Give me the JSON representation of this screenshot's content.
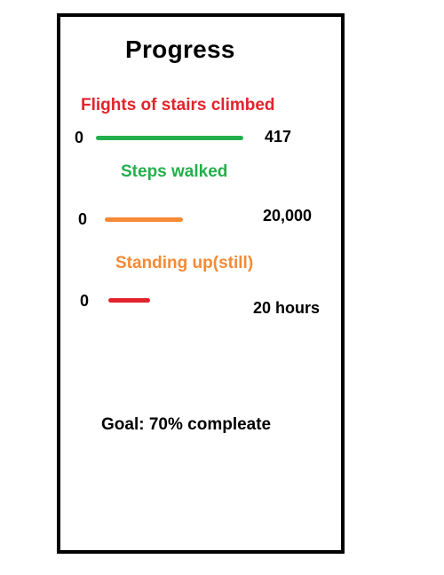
{
  "header": {
    "title": "Progress"
  },
  "metrics": [
    {
      "label": "Flights of stairs climbed",
      "start": "0",
      "target": "417",
      "color": "#e3232c",
      "bar_color": "#22b04c"
    },
    {
      "label": "Steps walked",
      "start": "0",
      "target": "20,000",
      "color": "#22b04c",
      "bar_color": "#f58a36"
    },
    {
      "label": "Standing up(still)",
      "start": "0",
      "target": "20 hours",
      "color": "#f58a36",
      "bar_color": "#e3232c"
    }
  ],
  "goal": {
    "text": "Goal: 70% compleate"
  }
}
